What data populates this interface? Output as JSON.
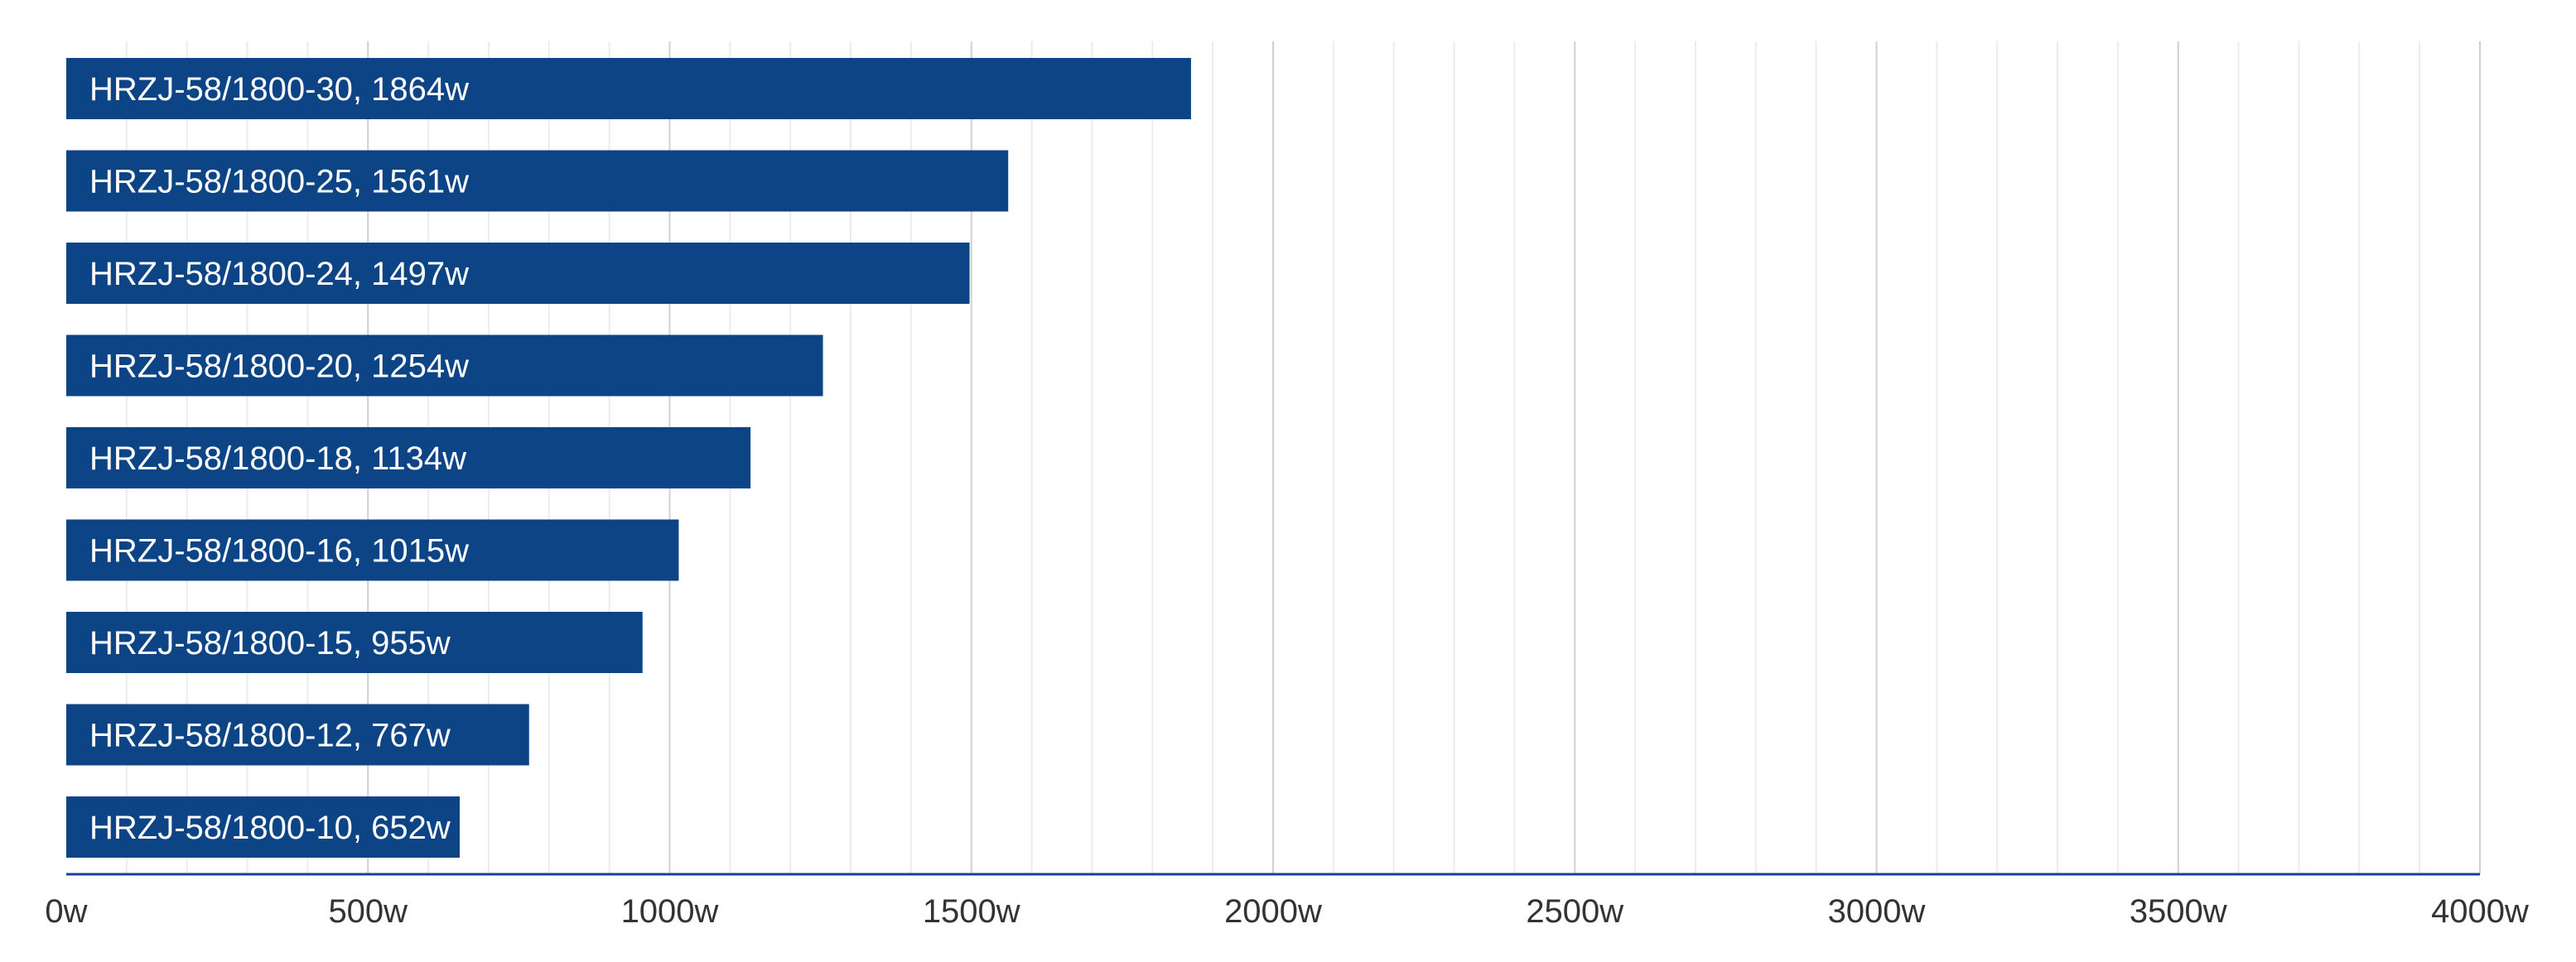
{
  "chart_data": {
    "type": "bar",
    "orientation": "horizontal",
    "categories": [
      "HRZJ-58/1800-30, 1864w",
      "HRZJ-58/1800-25, 1561w",
      "HRZJ-58/1800-24, 1497w",
      "HRZJ-58/1800-20, 1254w",
      "HRZJ-58/1800-18, 1134w",
      "HRZJ-58/1800-16, 1015w",
      "HRZJ-58/1800-15, 955w",
      "HRZJ-58/1800-12, 767w",
      "HRZJ-58/1800-10, 652w"
    ],
    "values": [
      1864,
      1561,
      1497,
      1254,
      1134,
      1015,
      955,
      767,
      652
    ],
    "xlim": [
      0,
      4000
    ],
    "x_ticks": [
      "0w",
      "500w",
      "1000w",
      "1500w",
      "2000w",
      "2500w",
      "3000w",
      "3500w",
      "4000w"
    ],
    "x_tick_values": [
      0,
      500,
      1000,
      1500,
      2000,
      2500,
      3000,
      3500,
      4000
    ],
    "minor_grid_step": 100,
    "grid": true,
    "title": "",
    "xlabel": "",
    "ylabel": "",
    "colors": {
      "bar": "#0d4486",
      "axis": "#1c3f94",
      "major_grid": "#d0d0d0",
      "minor_grid": "#ececec",
      "label": "#ffffff",
      "tick_text": "#333333"
    }
  }
}
